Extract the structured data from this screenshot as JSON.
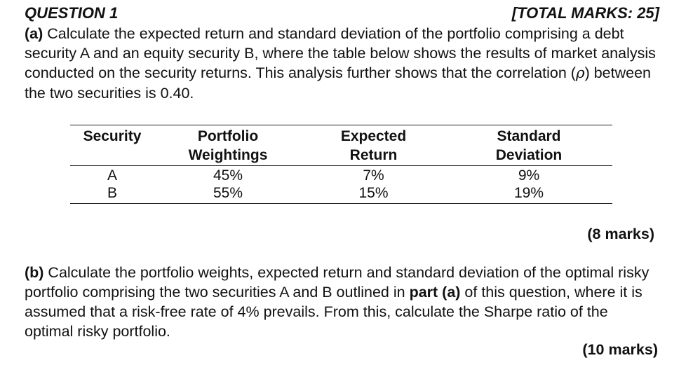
{
  "question": {
    "title": "QUESTION 1",
    "total_marks": "[TOTAL MARKS: 25]"
  },
  "part_a": {
    "label": "(a)",
    "text_1": " Calculate the expected return and standard deviation of the portfolio comprising a debt security A and an equity security B, where the table below shows the results of market analysis conducted on the security returns. This analysis further shows that the correlation (",
    "symbol": "ρ",
    "text_2": ") between the two securities is 0.40.",
    "marks": "(8 marks)"
  },
  "table": {
    "headers": [
      [
        "Security"
      ],
      [
        "Portfolio",
        "Weightings"
      ],
      [
        "Expected",
        "Return"
      ],
      [
        "Standard",
        "Deviation"
      ]
    ],
    "rows": [
      [
        "A",
        "45%",
        "7%",
        "9%"
      ],
      [
        "B",
        "55%",
        "15%",
        "19%"
      ]
    ]
  },
  "part_b": {
    "label": "(b)",
    "text_1": " Calculate the portfolio weights, expected return and standard deviation of the optimal risky portfolio comprising the two securities A and B outlined in ",
    "bold_ref": "part (a)",
    "text_2": " of this question, where it is assumed that a risk-free rate of 4% prevails. From this, calculate the Sharpe ratio of the optimal risky portfolio.",
    "marks": "(10 marks)"
  }
}
